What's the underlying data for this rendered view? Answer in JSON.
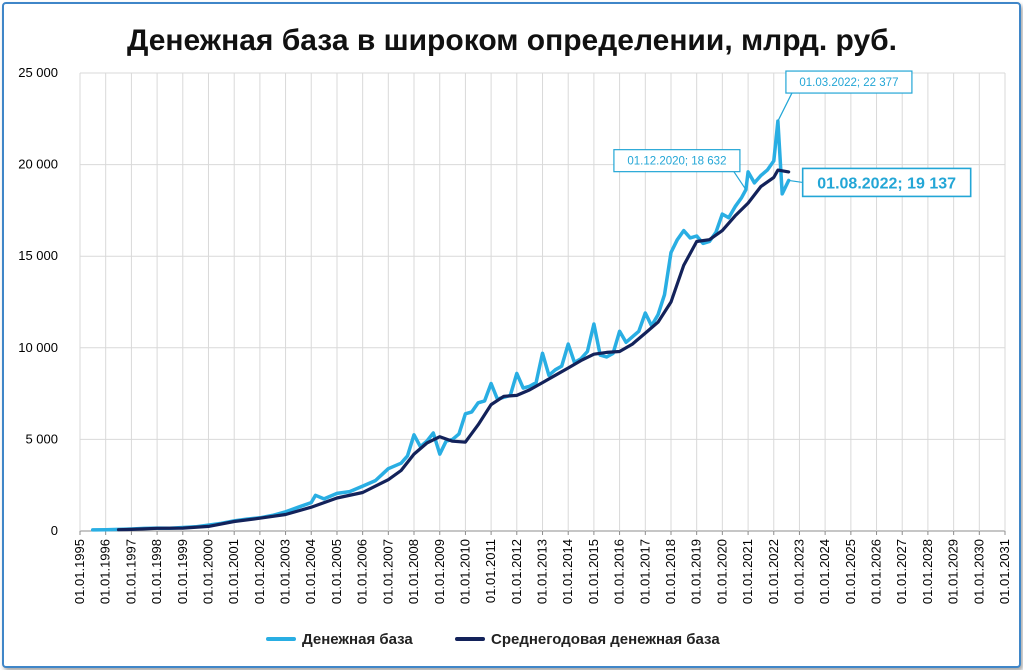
{
  "chart_data": {
    "type": "line",
    "title": "Денежная база в широком определении, млрд. руб.",
    "xlabel": "",
    "ylabel": "",
    "ylim": [
      0,
      25000
    ],
    "xlim": [
      "1995-01-01",
      "2031-01-01"
    ],
    "y_ticks": [
      "0",
      "5 000",
      "10 000",
      "15 000",
      "20 000",
      "25 000"
    ],
    "y_tick_values": [
      0,
      5000,
      10000,
      15000,
      20000,
      25000
    ],
    "x_ticks": [
      "01.01.1995",
      "01.01.1996",
      "01.01.1997",
      "01.01.1998",
      "01.01.1999",
      "01.01.2000",
      "01.01.2001",
      "01.01.2002",
      "01.01.2003",
      "01.01.2004",
      "01.01.2005",
      "01.01.2006",
      "01.01.2007",
      "01.01.2008",
      "01.01.2009",
      "01.01.2010",
      "01.01.2011",
      "01.01.2012",
      "01.01.2013",
      "01.01.2014",
      "01.01.2015",
      "01.01.2016",
      "01.01.2017",
      "01.01.2018",
      "01.01.2019",
      "01.01.2020",
      "01.01.2021",
      "01.01.2022",
      "01.01.2023",
      "01.01.2024",
      "01.01.2025",
      "01.01.2026",
      "01.01.2027",
      "01.01.2028",
      "01.01.2029",
      "01.01.2030",
      "01.01.2031"
    ],
    "grid": true,
    "legend_position": "bottom",
    "series": [
      {
        "name": "Денежная база",
        "color": "#29aee3",
        "points": [
          [
            "1995-07-01",
            60
          ],
          [
            "1996-01-01",
            70
          ],
          [
            "1996-07-01",
            90
          ],
          [
            "1997-01-01",
            110
          ],
          [
            "1997-07-01",
            140
          ],
          [
            "1998-01-01",
            160
          ],
          [
            "1998-07-01",
            150
          ],
          [
            "1999-01-01",
            190
          ],
          [
            "1999-07-01",
            230
          ],
          [
            "2000-01-01",
            320
          ],
          [
            "2000-07-01",
            420
          ],
          [
            "2001-01-01",
            550
          ],
          [
            "2001-07-01",
            650
          ],
          [
            "2002-01-01",
            720
          ],
          [
            "2002-07-01",
            850
          ],
          [
            "2003-01-01",
            1050
          ],
          [
            "2003-07-01",
            1300
          ],
          [
            "2004-01-01",
            1550
          ],
          [
            "2004-03-01",
            1950
          ],
          [
            "2004-07-01",
            1750
          ],
          [
            "2005-01-01",
            2050
          ],
          [
            "2005-07-01",
            2150
          ],
          [
            "2006-01-01",
            2450
          ],
          [
            "2006-07-01",
            2750
          ],
          [
            "2007-01-01",
            3400
          ],
          [
            "2007-07-01",
            3700
          ],
          [
            "2007-10-01",
            4100
          ],
          [
            "2008-01-01",
            5250
          ],
          [
            "2008-04-01",
            4600
          ],
          [
            "2008-07-01",
            4900
          ],
          [
            "2008-10-01",
            5350
          ],
          [
            "2009-01-01",
            4200
          ],
          [
            "2009-04-01",
            4900
          ],
          [
            "2009-07-01",
            5000
          ],
          [
            "2009-10-01",
            5300
          ],
          [
            "2010-01-01",
            6400
          ],
          [
            "2010-04-01",
            6500
          ],
          [
            "2010-07-01",
            7000
          ],
          [
            "2010-10-01",
            7100
          ],
          [
            "2011-01-01",
            8050
          ],
          [
            "2011-04-01",
            7200
          ],
          [
            "2011-07-01",
            7300
          ],
          [
            "2011-10-01",
            7400
          ],
          [
            "2012-01-01",
            8600
          ],
          [
            "2012-04-01",
            7800
          ],
          [
            "2012-07-01",
            7900
          ],
          [
            "2012-10-01",
            8100
          ],
          [
            "2013-01-01",
            9700
          ],
          [
            "2013-04-01",
            8500
          ],
          [
            "2013-07-01",
            8800
          ],
          [
            "2013-10-01",
            9000
          ],
          [
            "2014-01-01",
            10200
          ],
          [
            "2014-04-01",
            9200
          ],
          [
            "2014-07-01",
            9400
          ],
          [
            "2014-10-01",
            9800
          ],
          [
            "2015-01-01",
            11300
          ],
          [
            "2015-04-01",
            9600
          ],
          [
            "2015-07-01",
            9500
          ],
          [
            "2015-10-01",
            9700
          ],
          [
            "2016-01-01",
            10900
          ],
          [
            "2016-04-01",
            10300
          ],
          [
            "2016-07-01",
            10600
          ],
          [
            "2016-10-01",
            10900
          ],
          [
            "2017-01-01",
            11900
          ],
          [
            "2017-04-01",
            11200
          ],
          [
            "2017-07-01",
            11800
          ],
          [
            "2017-10-01",
            12900
          ],
          [
            "2018-01-01",
            15200
          ],
          [
            "2018-04-01",
            15900
          ],
          [
            "2018-07-01",
            16400
          ],
          [
            "2018-10-01",
            16000
          ],
          [
            "2019-01-01",
            16100
          ],
          [
            "2019-04-01",
            15700
          ],
          [
            "2019-07-01",
            15800
          ],
          [
            "2019-10-01",
            16300
          ],
          [
            "2020-01-01",
            17300
          ],
          [
            "2020-04-01",
            17100
          ],
          [
            "2020-07-01",
            17700
          ],
          [
            "2020-10-01",
            18200
          ],
          [
            "2020-12-01",
            18632
          ],
          [
            "2021-01-01",
            19600
          ],
          [
            "2021-04-01",
            19000
          ],
          [
            "2021-07-01",
            19400
          ],
          [
            "2021-10-01",
            19700
          ],
          [
            "2022-01-01",
            20200
          ],
          [
            "2022-03-01",
            22377
          ],
          [
            "2022-05-01",
            18400
          ],
          [
            "2022-08-01",
            19137
          ]
        ]
      },
      {
        "name": "Среднегодовая денежная база",
        "color": "#13225a",
        "points": [
          [
            "1996-07-01",
            70
          ],
          [
            "1997-01-01",
            90
          ],
          [
            "1998-01-01",
            150
          ],
          [
            "1999-01-01",
            160
          ],
          [
            "2000-01-01",
            250
          ],
          [
            "2001-01-01",
            520
          ],
          [
            "2002-01-01",
            700
          ],
          [
            "2003-01-01",
            900
          ],
          [
            "2004-01-01",
            1300
          ],
          [
            "2005-01-01",
            1800
          ],
          [
            "2006-01-01",
            2100
          ],
          [
            "2007-01-01",
            2800
          ],
          [
            "2007-07-01",
            3300
          ],
          [
            "2008-01-01",
            4200
          ],
          [
            "2008-07-01",
            4800
          ],
          [
            "2009-01-01",
            5150
          ],
          [
            "2009-07-01",
            4900
          ],
          [
            "2010-01-01",
            4850
          ],
          [
            "2010-07-01",
            5800
          ],
          [
            "2011-01-01",
            6900
          ],
          [
            "2011-07-01",
            7350
          ],
          [
            "2012-01-01",
            7400
          ],
          [
            "2012-07-01",
            7700
          ],
          [
            "2013-01-01",
            8100
          ],
          [
            "2013-07-01",
            8500
          ],
          [
            "2014-01-01",
            8900
          ],
          [
            "2014-07-01",
            9300
          ],
          [
            "2015-01-01",
            9650
          ],
          [
            "2015-07-01",
            9750
          ],
          [
            "2016-01-01",
            9800
          ],
          [
            "2016-07-01",
            10200
          ],
          [
            "2017-01-01",
            10800
          ],
          [
            "2017-07-01",
            11400
          ],
          [
            "2018-01-01",
            12500
          ],
          [
            "2018-07-01",
            14500
          ],
          [
            "2019-01-01",
            15800
          ],
          [
            "2019-07-01",
            15900
          ],
          [
            "2020-01-01",
            16400
          ],
          [
            "2020-07-01",
            17200
          ],
          [
            "2021-01-01",
            17900
          ],
          [
            "2021-07-01",
            18800
          ],
          [
            "2022-01-01",
            19300
          ],
          [
            "2022-03-01",
            19700
          ],
          [
            "2022-08-01",
            19600
          ]
        ]
      }
    ],
    "annotations": [
      {
        "label": "01.03.2022; 22 377",
        "x": "2022-03-01",
        "y": 22377,
        "size": "small",
        "box": "top-right"
      },
      {
        "label": "01.12.2020; 18 632",
        "x": "2020-12-01",
        "y": 18632,
        "size": "small",
        "box": "top-left"
      },
      {
        "label": "01.08.2022;  19 137",
        "x": "2022-08-01",
        "y": 19137,
        "size": "large",
        "box": "right"
      }
    ]
  }
}
